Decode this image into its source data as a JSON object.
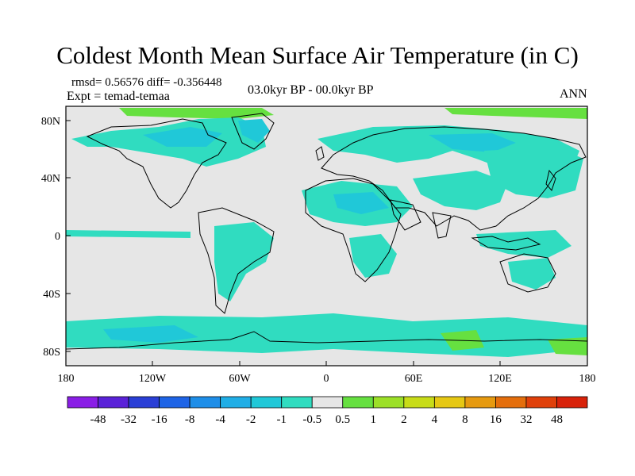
{
  "title": "Coldest Month Mean Surface Air Temperature (in C)",
  "stats_line": "rmsd= 0.56576 diff= -0.356448",
  "experiment": "Expt = temad-temaa",
  "period": "03.0kyr BP - 00.0kyr BP",
  "season": "ANN",
  "y_ticks": [
    "80N",
    "40N",
    "0",
    "40S",
    "80S"
  ],
  "x_ticks": [
    "180",
    "120W",
    "60W",
    "0",
    "60E",
    "120E",
    "180"
  ],
  "colorbar": {
    "labels": [
      "-48",
      "-32",
      "-16",
      "-8",
      "-4",
      "-2",
      "-1",
      "-0.5",
      "0.5",
      "1",
      "2",
      "4",
      "8",
      "16",
      "32",
      "48"
    ],
    "colors": [
      "#8a1ee6",
      "#5a22d8",
      "#2a3fd6",
      "#1e64e6",
      "#1e8ee8",
      "#20aee6",
      "#20c8d8",
      "#30dcc0",
      "#e6e6e6",
      "#66e040",
      "#9ce028",
      "#c8dc18",
      "#e6c814",
      "#e69a10",
      "#e46e0c",
      "#e0400a",
      "#d8220a"
    ]
  },
  "colors": {
    "land_background": "#e6e6e6",
    "anomaly_cool": "#30dcc0",
    "anomaly_cooler": "#20c8d8",
    "anomaly_warm": "#66e040"
  }
}
